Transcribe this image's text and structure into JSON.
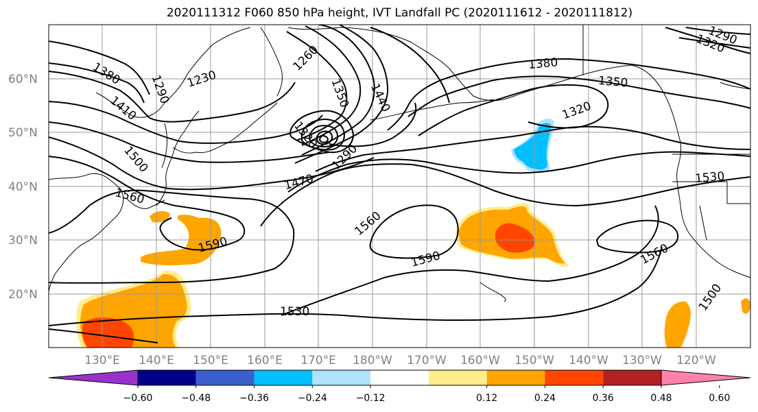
{
  "title": "2020111312 F060 850 hPa height, IVT Landfall PC (2020111612 - 2020111812)",
  "lat_labels": [
    "60°N",
    "50°N",
    "40°N",
    "30°N",
    "20°N"
  ],
  "lon_labels": [
    "130°E",
    "140°E",
    "150°E",
    "160°E",
    "170°E",
    "180°W",
    "170°W",
    "160°W",
    "150°W",
    "140°W",
    "130°W",
    "120°W"
  ],
  "contour_labels": [
    "1380",
    "1290",
    "1230",
    "1260",
    "1350",
    "1440",
    "1410",
    "1320",
    "1290",
    "1500",
    "1470",
    "1560",
    "1590",
    "1560",
    "1590",
    "1380",
    "1350",
    "1320",
    "1530",
    "1560",
    "1500",
    "1530",
    "1290",
    "1320"
  ],
  "colorbar": {
    "colors": [
      "#9932cc",
      "#00008b",
      "#3a5fcd",
      "#00bfff",
      "#b0e2ff",
      "#ffffff",
      "#ffec8b",
      "#ffa500",
      "#ff4500",
      "#b22222",
      "#ff82ab"
    ],
    "tick_labels": [
      "−0.60",
      "−0.48",
      "−0.36",
      "−0.24",
      "−0.12",
      "0.12",
      "0.24",
      "0.36",
      "0.48",
      "0.60"
    ]
  }
}
